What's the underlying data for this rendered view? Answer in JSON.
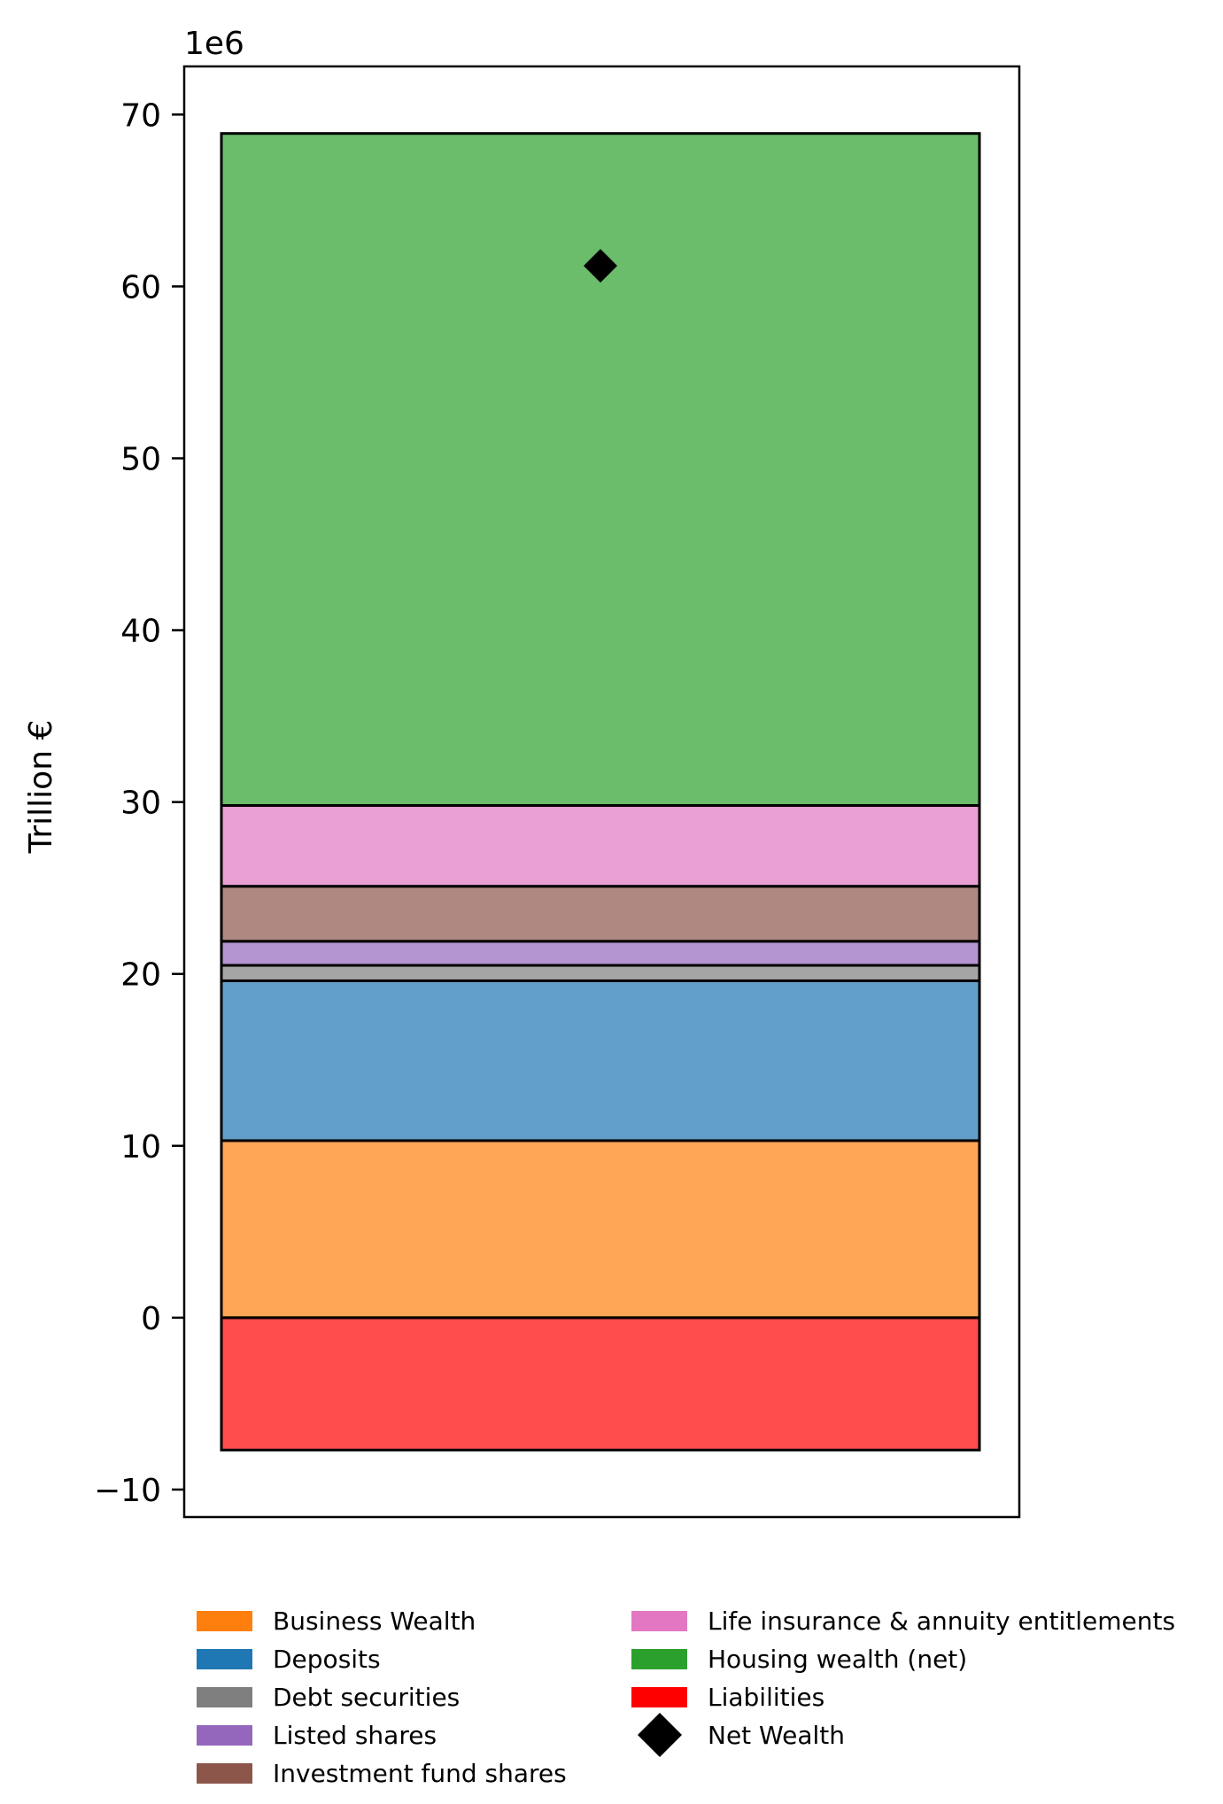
{
  "chart_data": {
    "type": "bar",
    "stacked": true,
    "ylabel": "Trillion €",
    "y_offset_label": "1e6",
    "ylim": [
      -11.6,
      72.8
    ],
    "yticks": [
      -10,
      0,
      10,
      20,
      30,
      40,
      50,
      60,
      70
    ],
    "ytick_labels": [
      "−10",
      "0",
      "10",
      "20",
      "30",
      "40",
      "50",
      "60",
      "70"
    ],
    "segments": [
      {
        "name": "Liabilities",
        "bottom": -7.7,
        "top": 0.0,
        "color": "#ff0000"
      },
      {
        "name": "Business Wealth",
        "bottom": 0.0,
        "top": 10.3,
        "color": "#ff7f0e"
      },
      {
        "name": "Deposits",
        "bottom": 10.3,
        "top": 19.6,
        "color": "#1f77b4"
      },
      {
        "name": "Debt securities",
        "bottom": 19.6,
        "top": 20.5,
        "color": "#7f7f7f"
      },
      {
        "name": "Listed shares",
        "bottom": 20.5,
        "top": 21.9,
        "color": "#9467bd"
      },
      {
        "name": "Investment fund shares",
        "bottom": 21.9,
        "top": 25.1,
        "color": "#8c564b"
      },
      {
        "name": "Life insurance & annuity entitlements",
        "bottom": 25.1,
        "top": 29.8,
        "color": "#e377c2"
      },
      {
        "name": "Housing wealth (net)",
        "bottom": 29.8,
        "top": 68.9,
        "color": "#2ca02c"
      }
    ],
    "net_wealth": {
      "name": "Net Wealth",
      "value": 61.2,
      "color": "#000000"
    },
    "legend": {
      "placement": "below",
      "col1": [
        "Business Wealth",
        "Deposits",
        "Debt securities",
        "Listed shares",
        "Investment fund shares"
      ],
      "col1_colors": [
        "#ff7f0e",
        "#1f77b4",
        "#7f7f7f",
        "#9467bd",
        "#8c564b"
      ],
      "col2": [
        "Life insurance & annuity entitlements",
        "Housing wealth (net)",
        "Liabilities",
        "Net Wealth"
      ],
      "col2_colors": [
        "#e377c2",
        "#2ca02c",
        "#ff0000",
        "#000000"
      ]
    }
  }
}
